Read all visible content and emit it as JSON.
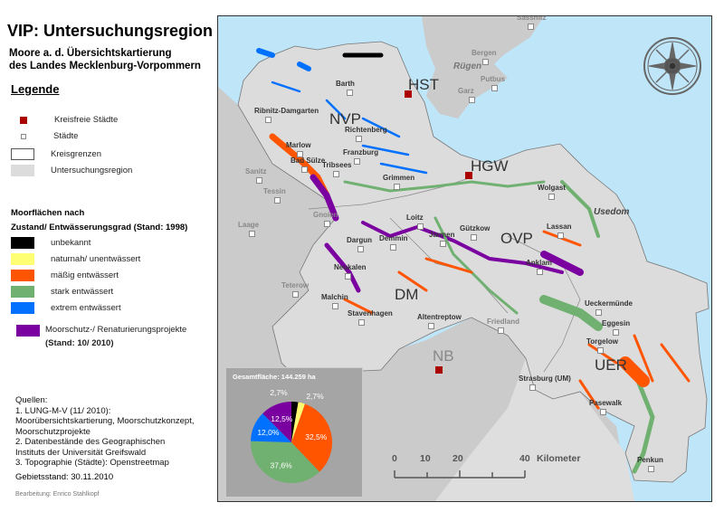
{
  "title": "VIP: Untersuchungsregion",
  "subtitle": [
    "Moore a. d. Übersichtskartierung",
    "des Landes Mecklenburg-Vorpommern"
  ],
  "legend": {
    "title": "Legende",
    "items": [
      {
        "label": "Kreisfreie Städte",
        "color": "#a00000"
      },
      {
        "label": "Städte",
        "color": "#ffffff"
      },
      {
        "label": "Kreisgrenzen",
        "color": "#ffffff"
      },
      {
        "label": "Untersuchungsregion",
        "color": "#dcdcdc"
      }
    ],
    "moor_title": [
      "Moorflächen nach",
      "Zustand/ Entwässerungsgrad (Stand: 1998)"
    ],
    "moor_items": [
      {
        "label": "unbekannt",
        "color": "#000000"
      },
      {
        "label": "naturnah/ unentwässert",
        "color": "#ffff73"
      },
      {
        "label": "mäßig entwässert",
        "color": "#ff5500"
      },
      {
        "label": "stark entwässert",
        "color": "#70b070"
      },
      {
        "label": "extrem entwässert",
        "color": "#0070ff"
      }
    ],
    "project": {
      "label": "Moorschutz-/ Renaturierungsprojekte",
      "sub": "(Stand: 10/ 2010)",
      "color": "#7a00a0"
    }
  },
  "sources": [
    "Quellen:",
    "1. LUNG-M-V (11/ 2010):",
    "Moorübersichtskartierung, Moorschutzkonzept,",
    "Moorschutzprojekte",
    "2. Datenbestände des Geographischen",
    "Instituts der Universität Greifswald",
    "3. Topographie (Städte): Openstreetmap"
  ],
  "gebietsstand": "Gebietsstand: 30.11.2010",
  "bearbeitung": "Bearbeitung: Enrico Stahlkopf",
  "map": {
    "regions": [
      "NVP",
      "HST",
      "HGW",
      "OVP",
      "DM",
      "NB",
      "UER"
    ],
    "islands": [
      "Rügen",
      "Usedom"
    ],
    "cities": [
      "Barth",
      "Ribnitz-Damgarten",
      "Richtenberg",
      "Marlow",
      "Franzburg",
      "Bad Sülze",
      "Tribsees",
      "Grimmen",
      "Sanitz",
      "Tessin",
      "Gnoien",
      "Laage",
      "Teterow",
      "Dargun",
      "Demmin",
      "Loitz",
      "Jarmen",
      "Gützkow",
      "Neukalen",
      "Malchin",
      "Stavenhagen",
      "Altentreptow",
      "Friedland",
      "Strasburg (UM)",
      "Pasewalk",
      "Penkun",
      "Torgelow",
      "Eggesin",
      "Ueckermünde",
      "Wolgast",
      "Lassan",
      "Anklam",
      "Sassnitz",
      "Bergen",
      "Putbus",
      "Garz"
    ],
    "scalebar": {
      "ticks": [
        "0",
        "10",
        "20",
        "40"
      ],
      "unit": "Kilometer"
    },
    "compass": "compass-rose"
  },
  "chart_data": {
    "type": "pie",
    "title": "Gesamtfläche: 144.259 ha",
    "categories": [
      "unbekannt",
      "naturnah/ unentwässert",
      "mäßig entwässert",
      "stark entwässert",
      "extrem entwässert",
      "Moorschutz-/ Renaturierungsprojekte"
    ],
    "values": [
      2.7,
      2.7,
      32.5,
      37.6,
      12.0,
      12.5
    ],
    "labels": [
      "2,7%",
      "2,7%",
      "32,5%",
      "37,6%",
      "12,0%",
      "12,5%"
    ],
    "colors": [
      "#000000",
      "#ffff73",
      "#ff5500",
      "#70b070",
      "#0070ff",
      "#7a00a0"
    ]
  }
}
